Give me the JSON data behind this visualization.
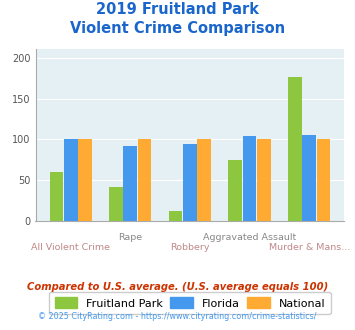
{
  "title_line1": "2019 Fruitland Park",
  "title_line2": "Violent Crime Comparison",
  "categories": [
    "All Violent Crime",
    "Rape",
    "Robbery",
    "Aggravated Assault",
    "Murder & Mans..."
  ],
  "fruitland_park": [
    60,
    42,
    12,
    75,
    176
  ],
  "florida": [
    101,
    92,
    94,
    104,
    105
  ],
  "national": [
    100,
    100,
    100,
    100,
    100
  ],
  "color_fp": "#8dc63f",
  "color_fl": "#4499ee",
  "color_nat": "#ffaa33",
  "ylim": [
    0,
    210
  ],
  "yticks": [
    0,
    50,
    100,
    150,
    200
  ],
  "legend_labels": [
    "Fruitland Park",
    "Florida",
    "National"
  ],
  "footnote1": "Compared to U.S. average. (U.S. average equals 100)",
  "footnote2": "© 2025 CityRating.com - https://www.cityrating.com/crime-statistics/",
  "title_color": "#1a66cc",
  "xlabel_color_odd": "#c08888",
  "xlabel_color_even": "#888888",
  "footnote1_color": "#cc3300",
  "footnote2_color": "#4499ee",
  "bg_chart": "#e4f0f4",
  "bg_fig": "#ffffff",
  "bar_width": 0.23,
  "bar_gap": 0.01
}
